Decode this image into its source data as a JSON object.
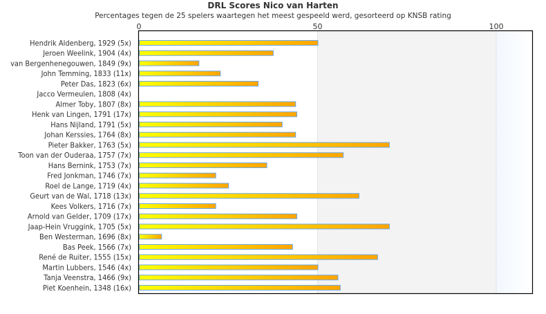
{
  "chart_data": {
    "type": "bar",
    "orientation": "horizontal",
    "title": "DRL Scores Nico van Harten",
    "subtitle": "Percentages tegen de 25 spelers waartegen het meest gespeeld werd, gesorteerd op KNSB rating",
    "xlim": [
      0,
      110
    ],
    "xticks": [
      "0",
      "50",
      "100"
    ],
    "xtick_values": [
      0,
      50,
      100
    ],
    "categories": [
      "Hendrik Aldenberg, 1929 (5x)",
      "Jeroen Weelink, 1904 (4x)",
      "van Bergenhenegouwen, 1849 (9x)",
      "John Temming, 1833 (11x)",
      "Peter Das, 1823 (6x)",
      "Jacco Vermeulen, 1808 (4x)",
      "Almer Toby, 1807 (8x)",
      "Henk van Lingen, 1791 (17x)",
      "Hans Nijland, 1791 (5x)",
      "Johan Kerssies, 1764 (8x)",
      "Pieter Bakker, 1763 (5x)",
      "Toon van der Ouderaa, 1757 (7x)",
      "Hans Bernink, 1753 (7x)",
      "Fred Jonkman, 1746 (7x)",
      "Roel de Lange, 1719 (4x)",
      "Geurt van de Wal, 1718 (13x)",
      "Kees Volkers, 1716 (7x)",
      "Arnold van Gelder, 1709 (17x)",
      "Jaap-Hein Vruggink, 1705 (5x)",
      "Ben Westerman, 1696 (8x)",
      "Bas Peek, 1566 (7x)",
      "René de Ruiter, 1555 (15x)",
      "Martin Lubbers, 1546 (4x)",
      "Tanja Veenstra, 1466 (9x)",
      "Piet Koenhein, 1348 (16x)"
    ],
    "values": [
      50,
      37.5,
      16.7,
      22.7,
      33.3,
      0,
      43.75,
      44.1,
      40,
      43.75,
      70,
      57.1,
      35.7,
      21.4,
      25,
      61.5,
      21.4,
      44.1,
      70,
      6.25,
      42.9,
      66.7,
      50,
      55.6,
      56.25
    ],
    "colors": {
      "bar_start": "#ffff00",
      "bar_end": "#ffa500",
      "bar_border": "#6aa8e8",
      "band_mid": "#f3f3f3",
      "band_high": "#f6f9fd"
    },
    "grid": false,
    "legend": "none"
  }
}
